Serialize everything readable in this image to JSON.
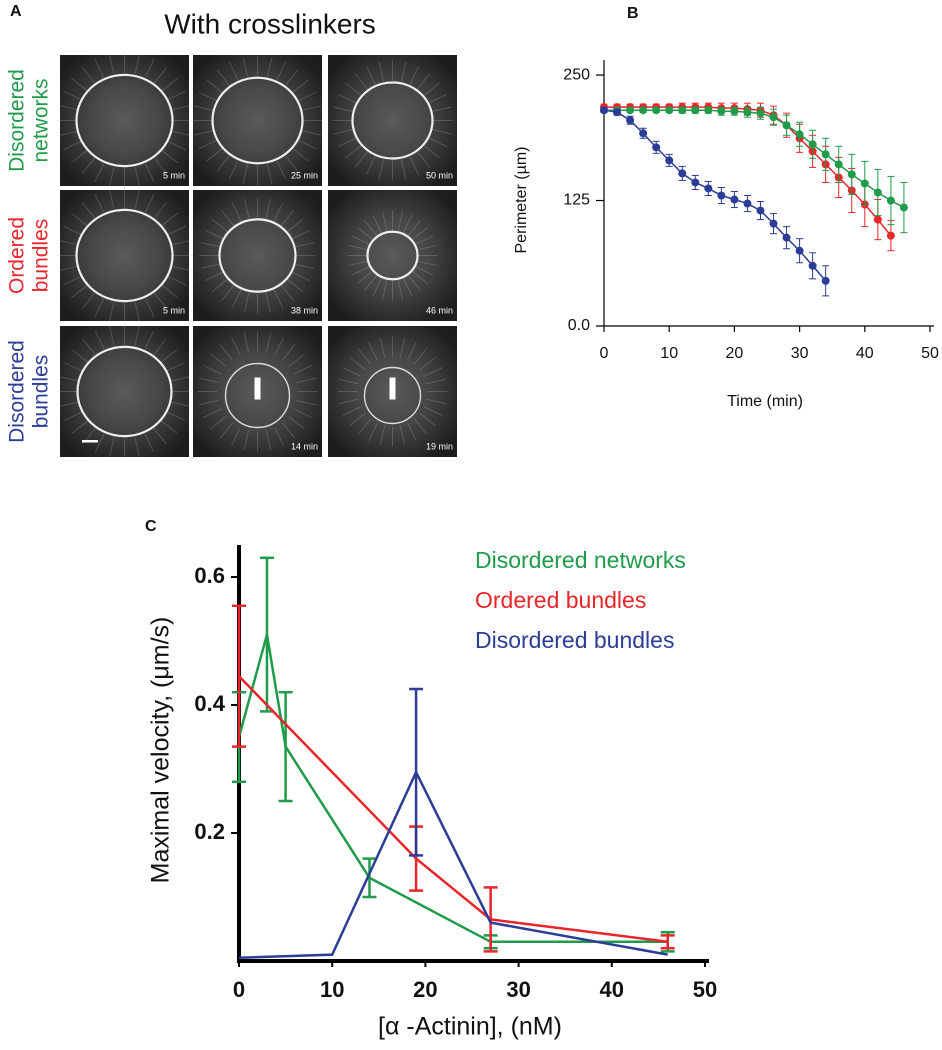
{
  "panel_a": {
    "label": "A",
    "title": "With crosslinkers",
    "rows": [
      {
        "label": [
          "Disordered",
          "networks"
        ],
        "color": "#1f9b4a",
        "times": [
          "5 min",
          "25 min",
          "50 min"
        ]
      },
      {
        "label": [
          "Ordered",
          "bundles"
        ],
        "color": "#e8262b",
        "times": [
          "5 min",
          "38 min",
          "46 min"
        ]
      },
      {
        "label": [
          "Disordered",
          "bundles"
        ],
        "color": "#2b3d96",
        "times": [
          "14 min",
          "19 min"
        ]
      }
    ]
  },
  "chart_data": [
    {
      "type": "line",
      "panel_label": "B",
      "xlabel": "Time (min)",
      "ylabel": "Perimeter (µm)",
      "xlim": [
        0,
        50
      ],
      "xticks": [
        0,
        10,
        20,
        30,
        40,
        50
      ],
      "ylim": [
        0,
        265
      ],
      "yticks": [
        {
          "value": 0,
          "label": "0.0"
        },
        125,
        250
      ],
      "markers": true,
      "series": [
        {
          "color": "#e8262b",
          "x": [
            0,
            2,
            4,
            6,
            8,
            10,
            12,
            14,
            16,
            18,
            20,
            22,
            24,
            26,
            28,
            30,
            32,
            34,
            36,
            38,
            40,
            42,
            44
          ],
          "values": [
            218,
            218,
            218,
            218,
            218,
            218,
            218,
            218,
            218,
            217,
            217,
            216,
            215,
            210,
            200,
            187,
            174,
            161,
            148,
            135,
            121,
            106,
            90
          ],
          "errors": [
            3,
            3,
            3,
            3,
            3,
            3,
            4,
            4,
            4,
            5,
            5,
            6,
            7,
            9,
            12,
            14,
            16,
            18,
            20,
            22,
            22,
            20,
            15
          ]
        },
        {
          "color": "#1f9b4a",
          "x": [
            0,
            2,
            4,
            6,
            8,
            10,
            12,
            14,
            16,
            18,
            20,
            22,
            24,
            26,
            28,
            30,
            32,
            34,
            36,
            38,
            40,
            42,
            44,
            46
          ],
          "values": [
            215,
            215,
            215,
            215,
            215,
            215,
            215,
            215,
            215,
            214,
            214,
            213,
            212,
            208,
            200,
            191,
            181,
            171,
            161,
            151,
            142,
            133,
            125,
            118
          ],
          "errors": [
            2,
            2,
            2,
            2,
            2,
            2,
            3,
            3,
            3,
            4,
            4,
            5,
            6,
            8,
            10,
            12,
            14,
            16,
            18,
            20,
            22,
            23,
            24,
            25
          ]
        },
        {
          "color": "#2b3d96",
          "x": [
            0,
            2,
            4,
            6,
            8,
            10,
            12,
            14,
            16,
            18,
            20,
            22,
            24,
            26,
            28,
            30,
            32,
            34
          ],
          "values": [
            215,
            213,
            205,
            192,
            178,
            165,
            152,
            143,
            137,
            130,
            126,
            122,
            115,
            102,
            88,
            75,
            60,
            45
          ],
          "errors": [
            2,
            3,
            4,
            5,
            6,
            6,
            7,
            7,
            7,
            8,
            8,
            8,
            9,
            10,
            11,
            12,
            13,
            15
          ]
        }
      ]
    },
    {
      "type": "line",
      "panel_label": "C",
      "xlabel": "[α -Actinin], (nM)",
      "ylabel": "Maximal velocity, (μm/s)",
      "xlim": [
        0,
        50
      ],
      "xticks": [
        0,
        10,
        20,
        30,
        40,
        50
      ],
      "ylim": [
        0,
        0.65
      ],
      "yticks": [
        0.2,
        0.4,
        0.6
      ],
      "markers": false,
      "series": [
        {
          "name": "Disordered networks",
          "color": "#1f9b4a",
          "x": [
            0,
            3,
            5,
            14,
            27,
            46
          ],
          "values": [
            0.35,
            0.51,
            0.335,
            0.13,
            0.03,
            0.03
          ],
          "errors": [
            0.07,
            0.12,
            0.085,
            0.03,
            0.01,
            0.015
          ]
        },
        {
          "name": "Ordered bundles",
          "color": "#e8262b",
          "x": [
            0,
            19,
            27,
            46
          ],
          "values": [
            0.445,
            0.16,
            0.065,
            0.03
          ],
          "errors": [
            0.11,
            0.05,
            0.05,
            0.01
          ]
        },
        {
          "name": "Disordered bundles",
          "color": "#2b3d96",
          "x": [
            0,
            10,
            19,
            27,
            46
          ],
          "values": [
            0.005,
            0.01,
            0.295,
            0.06,
            0.01
          ],
          "errors": [
            0,
            0,
            0.13,
            0,
            0
          ]
        }
      ]
    }
  ]
}
